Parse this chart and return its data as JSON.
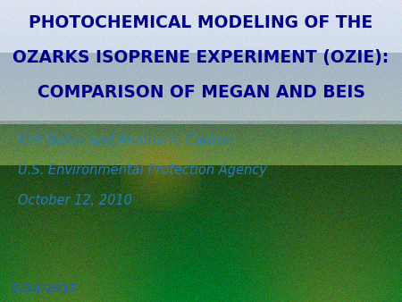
{
  "title_line1": "PHOTOCHEMICAL MODELING OF THE",
  "title_line2": "OZARKS ISOPRENE EXPERIMENT (OZIE):",
  "title_line3": "COMPARISON OF MEGAN AND BEIS",
  "title_color": "#00008B",
  "title_fontsize": 13.5,
  "author": "Kirk Baker and Annmarie Carlton",
  "agency": "U.S. Environmental Protection Agency",
  "date": "October 12, 2010",
  "subtitle_color": "#2B7BB5",
  "subtitle_fontsize": 10.5,
  "footer": "5/24/2015",
  "footer_color": "#2B5FA0",
  "footer_fontsize": 9.5
}
